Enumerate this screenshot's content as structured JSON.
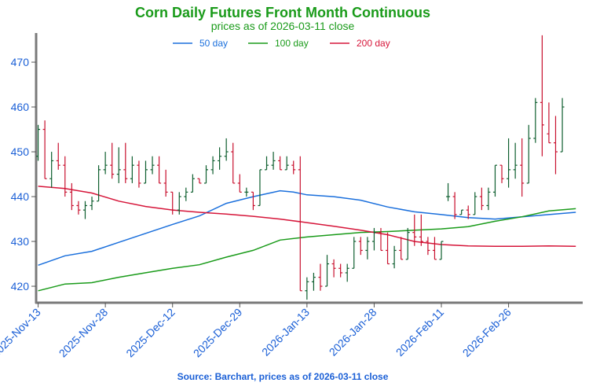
{
  "header": {
    "title": "Corn Daily Futures Front Month Continuous",
    "subtitle": "prices as of 2026-03-11 close"
  },
  "footer": {
    "source": "Source: Barchart, prices as of 2026-03-11 close"
  },
  "colors": {
    "up": "#0d5e2e",
    "down": "#c8102e",
    "ma50": "#1a6fdc",
    "ma100": "#1a9b1a",
    "ma200": "#d6163a",
    "accent": "#1a5fd6"
  },
  "chart_data": {
    "type": "ohlc",
    "title": "Corn Daily Futures Front Month Continuous",
    "subtitle": "prices as of 2026-03-11 close",
    "ylim": [
      416.5,
      476.5
    ],
    "yticks": [
      420,
      430,
      440,
      450,
      460,
      470
    ],
    "xlim": [
      -0.3,
      80.8
    ],
    "xticks": [
      {
        "index": 0,
        "label": "2025-Nov-13"
      },
      {
        "index": 10,
        "label": "2025-Nov-28"
      },
      {
        "index": 20,
        "label": "2025-Dec-12"
      },
      {
        "index": 30,
        "label": "2025-Dec-29"
      },
      {
        "index": 40,
        "label": "2026-Jan-13"
      },
      {
        "index": 50,
        "label": "2026-Jan-28"
      },
      {
        "index": 60,
        "label": "2026-Feb-11"
      },
      {
        "index": 70,
        "label": "2026-Feb-26"
      }
    ],
    "legend": {
      "placement": "top-center",
      "entries": [
        "50 day",
        "100 day",
        "200 day"
      ]
    },
    "ohlc": [
      [
        449,
        456,
        448,
        455
      ],
      [
        455,
        457,
        444,
        444
      ],
      [
        444,
        450,
        442,
        448
      ],
      [
        448,
        452,
        446,
        447
      ],
      [
        447,
        449,
        440,
        441
      ],
      [
        441,
        443,
        437,
        438
      ],
      [
        438,
        439,
        436,
        437
      ],
      [
        437,
        439,
        435,
        438
      ],
      [
        438,
        440,
        437,
        439
      ],
      [
        439,
        447,
        439,
        446
      ],
      [
        446,
        450,
        445,
        447
      ],
      [
        447,
        452,
        444,
        445
      ],
      [
        445,
        451,
        443,
        446
      ],
      [
        446,
        452,
        443,
        444
      ],
      [
        444,
        449,
        443,
        447
      ],
      [
        447,
        448,
        442,
        443
      ],
      [
        443,
        448,
        443,
        446
      ],
      [
        446,
        449,
        445,
        447
      ],
      [
        447,
        449,
        443,
        443
      ],
      [
        443,
        446,
        440,
        441
      ],
      [
        441,
        441,
        436,
        437
      ],
      [
        437,
        441,
        436,
        440
      ],
      [
        440,
        442,
        439,
        441
      ],
      [
        441,
        445,
        441,
        444
      ],
      [
        444,
        444,
        443,
        443
      ],
      [
        443,
        447,
        443,
        446
      ],
      [
        446,
        449,
        445,
        448
      ],
      [
        448,
        451,
        446,
        449
      ],
      [
        449,
        453,
        448,
        450
      ],
      [
        450,
        452,
        443,
        443
      ],
      [
        443,
        445,
        441,
        441
      ],
      [
        441,
        442,
        440,
        441
      ],
      [
        441,
        441,
        437,
        438
      ],
      [
        438,
        446,
        438,
        446
      ],
      [
        446,
        449,
        446,
        447
      ],
      [
        447,
        450,
        446,
        448
      ],
      [
        448,
        449,
        446,
        446
      ],
      [
        446,
        449,
        446,
        447
      ],
      [
        447,
        448,
        445,
        446
      ],
      [
        446,
        449,
        419,
        419
      ],
      [
        419,
        422,
        417,
        421
      ],
      [
        421,
        423,
        419,
        422
      ],
      [
        422,
        425,
        419,
        420
      ],
      [
        420,
        427,
        420,
        425
      ],
      [
        425,
        426,
        422,
        424
      ],
      [
        424,
        425,
        422,
        423
      ],
      [
        423,
        425,
        421,
        424
      ],
      [
        424,
        431,
        424,
        430
      ],
      [
        430,
        431,
        427,
        428
      ],
      [
        428,
        431,
        426,
        430
      ],
      [
        430,
        433,
        428,
        432
      ],
      [
        432,
        433,
        428,
        428
      ],
      [
        428,
        432,
        425,
        425
      ],
      [
        425,
        429,
        424,
        428
      ],
      [
        428,
        431,
        426,
        426
      ],
      [
        426,
        433,
        426,
        432
      ],
      [
        432,
        436,
        429,
        431
      ],
      [
        431,
        436,
        429,
        430
      ],
      [
        430,
        431,
        427,
        428
      ],
      [
        428,
        431,
        426,
        426
      ],
      [
        426,
        430,
        426,
        430
      ],
      [
        440,
        443,
        439,
        440
      ],
      [
        440,
        441,
        435,
        436
      ],
      [
        436,
        437,
        436,
        437
      ],
      [
        437,
        438,
        435,
        436
      ],
      [
        436,
        441,
        436,
        440
      ],
      [
        440,
        442,
        437,
        438
      ],
      [
        438,
        442,
        437,
        441
      ],
      [
        441,
        447,
        440,
        447
      ],
      [
        447,
        447,
        443,
        444
      ],
      [
        444,
        453,
        442,
        446
      ],
      [
        446,
        452,
        444,
        447
      ],
      [
        447,
        453,
        440,
        443
      ],
      [
        443,
        456,
        443,
        453
      ],
      [
        453,
        462,
        452,
        461
      ],
      [
        461,
        476,
        449,
        456
      ],
      [
        454,
        461,
        452,
        452
      ],
      [
        452,
        458,
        445,
        450
      ],
      [
        450,
        462,
        450,
        460
      ]
    ],
    "series": [
      {
        "name": "50 day",
        "x": [
          0,
          4,
          8,
          12,
          16,
          20,
          24,
          28,
          32,
          36,
          38,
          40,
          44,
          48,
          52,
          56,
          60,
          64,
          68,
          72,
          76,
          80
        ],
        "values": [
          424.7,
          426.8,
          427.8,
          429.8,
          431.8,
          433.8,
          435.7,
          438.5,
          440.0,
          441.3,
          441.0,
          440.4,
          440.0,
          439.2,
          437.7,
          436.6,
          436.0,
          435.3,
          435.0,
          435.5,
          436.0,
          436.5
        ]
      },
      {
        "name": "100 day",
        "x": [
          0,
          4,
          8,
          12,
          16,
          20,
          24,
          28,
          32,
          36,
          40,
          44,
          48,
          52,
          56,
          60,
          64,
          68,
          72,
          76,
          80
        ],
        "values": [
          419.0,
          420.5,
          420.8,
          422.0,
          423.0,
          424.0,
          424.8,
          426.5,
          428.0,
          430.3,
          431.0,
          431.5,
          432.0,
          432.2,
          432.5,
          432.8,
          433.3,
          434.5,
          435.5,
          436.8,
          437.3
        ]
      },
      {
        "name": "200 day",
        "x": [
          0,
          4,
          8,
          12,
          16,
          20,
          24,
          28,
          32,
          36,
          40,
          44,
          48,
          52,
          56,
          60,
          64,
          68,
          72,
          76,
          80
        ],
        "values": [
          442.3,
          441.8,
          440.8,
          439.0,
          437.8,
          437.0,
          436.5,
          436.1,
          435.6,
          435.0,
          434.2,
          433.4,
          432.5,
          431.5,
          430.0,
          429.3,
          429.0,
          428.9,
          428.9,
          429.0,
          428.9
        ]
      }
    ]
  }
}
